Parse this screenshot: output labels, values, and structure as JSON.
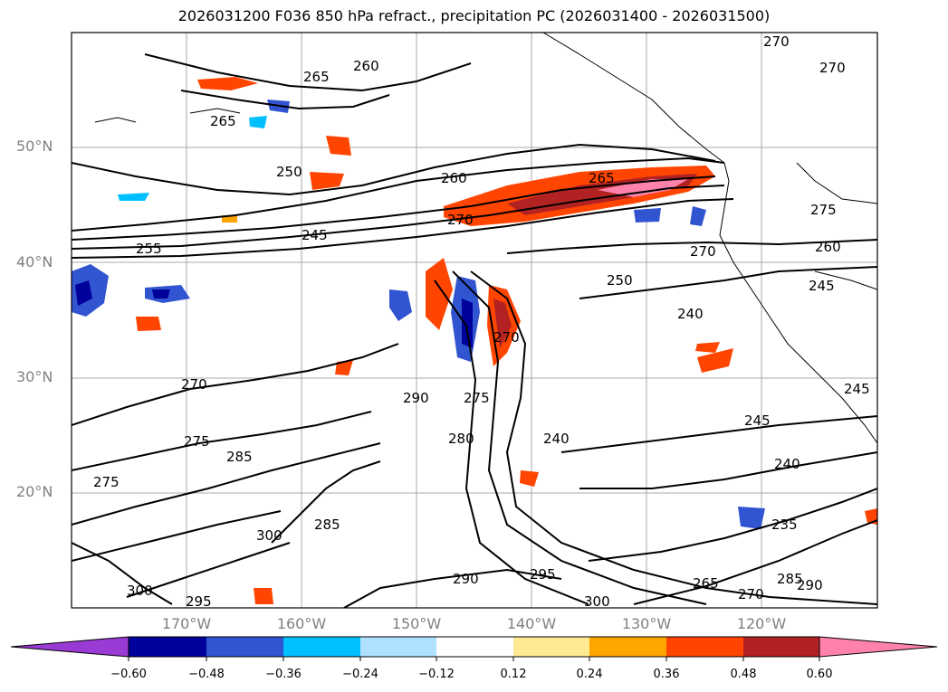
{
  "title": "2026031200 F036 850 hPa refract., precipitation PC (2026031400 - 2026031500)",
  "map": {
    "lat_labels": [
      "50°N",
      "40°N",
      "30°N",
      "20°N"
    ],
    "lon_labels": [
      "170°W",
      "160°W",
      "150°W",
      "140°W",
      "130°W",
      "120°W"
    ],
    "contour_labels": [
      "270",
      "270",
      "265",
      "260",
      "265",
      "250",
      "260",
      "265",
      "270",
      "245",
      "255",
      "270",
      "260",
      "250",
      "240",
      "245",
      "270",
      "275",
      "285",
      "290",
      "275",
      "280",
      "240",
      "245",
      "245",
      "240",
      "275",
      "300",
      "285",
      "300",
      "290",
      "295",
      "300",
      "265",
      "270",
      "235",
      "285",
      "290"
    ]
  },
  "colorbar": {
    "ticks": [
      "−0.60",
      "−0.48",
      "−0.36",
      "−0.24",
      "−0.12",
      "0.12",
      "0.24",
      "0.36",
      "0.48",
      "0.60"
    ],
    "colors": [
      "#9a3ad4",
      "#00009a",
      "#3154d0",
      "#00bfff",
      "#b0e2ff",
      "#ffffff",
      "#ffe992",
      "#ffa500",
      "#ff4500",
      "#b22222",
      "#ff82ab"
    ]
  }
}
